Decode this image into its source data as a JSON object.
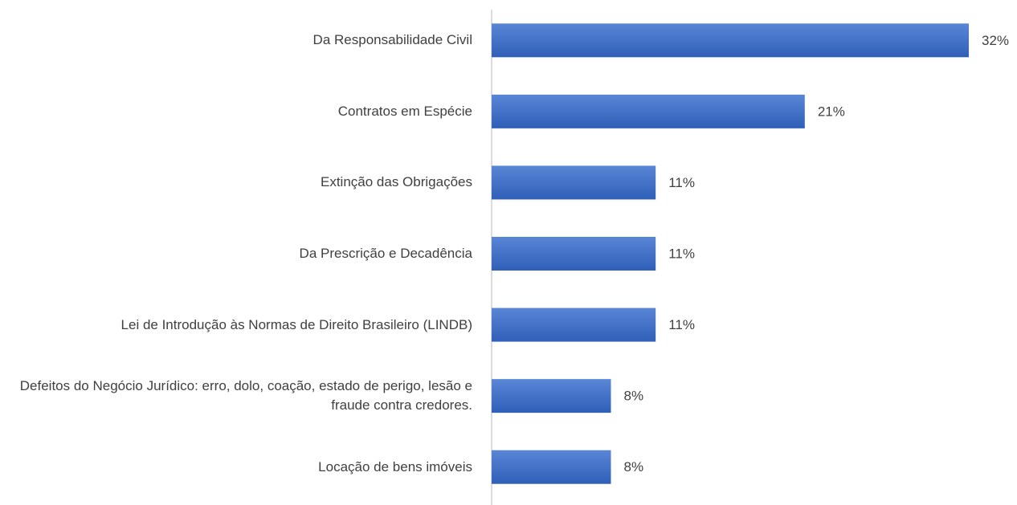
{
  "chart_data": {
    "type": "bar",
    "orientation": "horizontal",
    "categories": [
      "Da Responsabilidade Civil",
      "Contratos em Espécie",
      "Extinção das Obrigações",
      "Da Prescrição e Decadência",
      "Lei de Introdução às Normas de Direito Brasileiro (LINDB)",
      "Defeitos do Negócio Jurídico: erro, dolo, coação, estado de perigo, lesão e fraude contra credores.",
      "Locação de bens imóveis"
    ],
    "values": [
      32,
      21,
      11,
      11,
      11,
      8,
      8
    ],
    "value_labels": [
      "32%",
      "21%",
      "11%",
      "11%",
      "11%",
      "8%",
      "8%"
    ],
    "color": "#4472c4"
  }
}
